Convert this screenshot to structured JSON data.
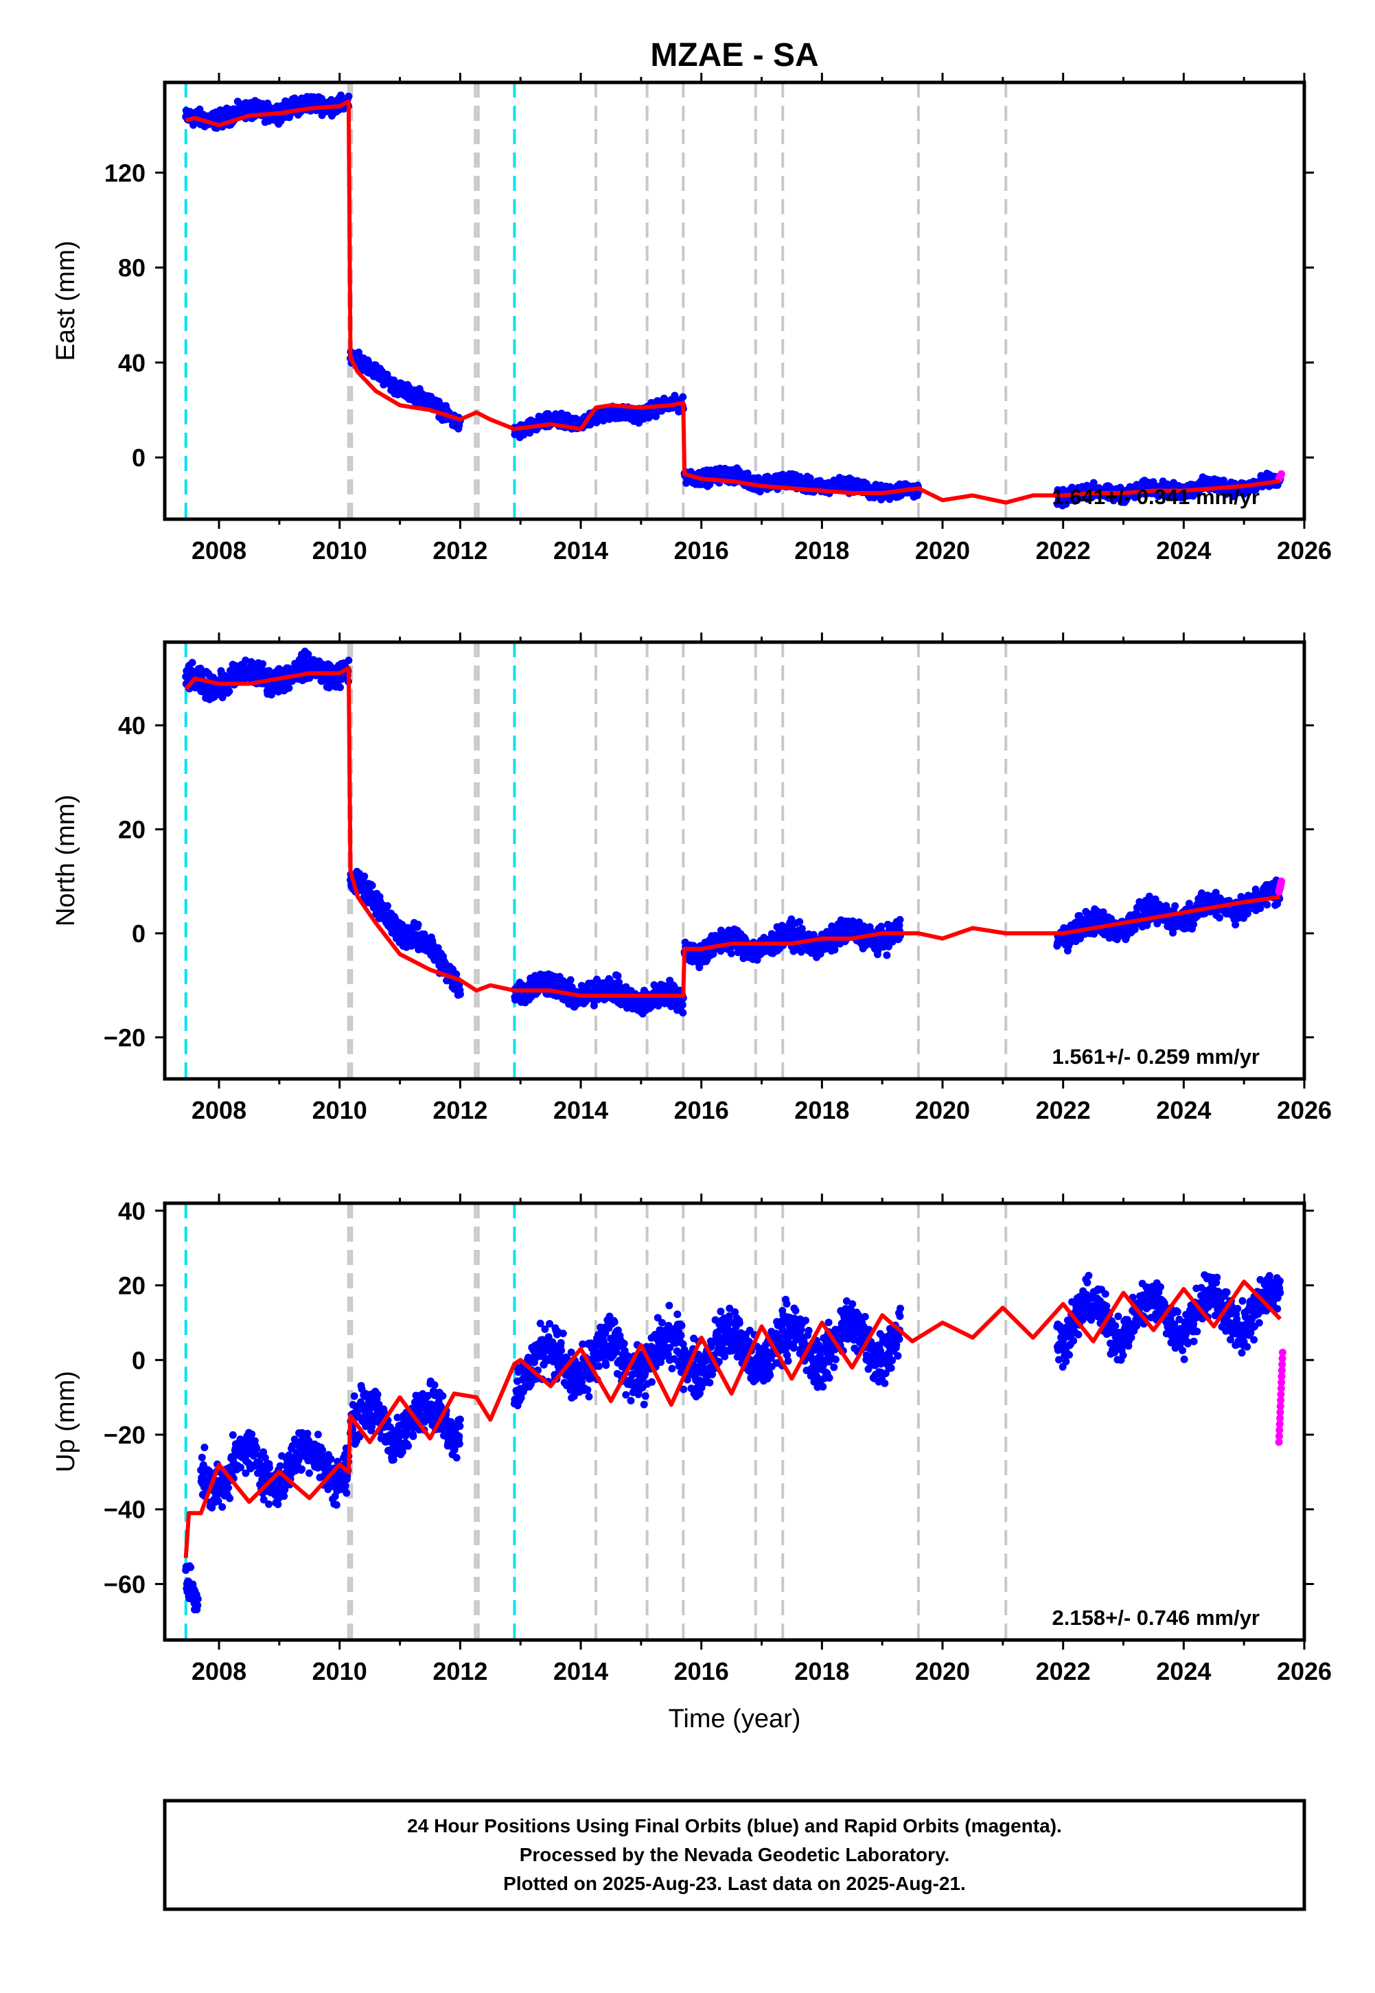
{
  "title": "MZAE - SA",
  "xlabel": "Time (year)",
  "footer": {
    "line1": "24 Hour Positions Using Final Orbits (blue) and Rapid Orbits (magenta).",
    "line2": "Processed by the Nevada Geodetic Laboratory.",
    "line3": "Plotted on 2025-Aug-23. Last data on 2025-Aug-21."
  },
  "colors": {
    "final_points": "#0000ff",
    "rapid_points": "#ff00ff",
    "model_line": "#ff0000",
    "event_equipment": "#c8c8c8",
    "event_earthquake": "#00e5ee",
    "frame": "#000000"
  },
  "chart_data": [
    {
      "type": "scatter",
      "component": "east",
      "ylabel": "East (mm)",
      "rate_label": "1.641+/- 0.341 mm/yr",
      "xlim": [
        2007.1,
        2026.0
      ],
      "ylim": [
        -26,
        158
      ],
      "xticks": [
        2008,
        2010,
        2012,
        2014,
        2016,
        2018,
        2020,
        2022,
        2024,
        2026
      ],
      "yticks": [
        0,
        40,
        80,
        120
      ],
      "event_lines": {
        "earthquake": [
          2007.45,
          2012.9
        ],
        "equipment": [
          2010.15,
          2010.2,
          2012.25,
          2012.3,
          2014.25,
          2015.1,
          2015.7,
          2016.9,
          2017.35,
          2019.6,
          2021.05
        ]
      },
      "model_series": {
        "name": "",
        "x": [
          2007.45,
          2007.6,
          2008.0,
          2008.5,
          2009.0,
          2009.5,
          2010.0,
          2010.15,
          2010.18,
          2010.3,
          2010.6,
          2011.0,
          2011.5,
          2012.0,
          2012.27,
          2012.5,
          2012.9,
          2013.5,
          2014.0,
          2014.25,
          2014.5,
          2015.0,
          2015.5,
          2015.7,
          2015.72,
          2016.0,
          2016.5,
          2017.0,
          2017.5,
          2018.0,
          2018.5,
          2019.0,
          2019.6,
          2020.0,
          2020.5,
          2021.05,
          2021.5,
          2022.0,
          2022.5,
          2023.0,
          2023.5,
          2024.0,
          2024.5,
          2025.0,
          2025.6
        ],
        "y": [
          142,
          143,
          140,
          144,
          145,
          147,
          148,
          150,
          42,
          36,
          28,
          22,
          20,
          16,
          19,
          16,
          12,
          14,
          12,
          21,
          22,
          21,
          22,
          23,
          -7,
          -9,
          -10,
          -12,
          -13,
          -14,
          -15,
          -15,
          -13,
          -18,
          -16,
          -19,
          -16,
          -16,
          -15,
          -15,
          -14,
          -14,
          -13,
          -12,
          -10
        ]
      },
      "final_series": {
        "name": "",
        "segments": [
          {
            "x": [
              2007.45,
              2010.15
            ],
            "base": [
              142,
              150
            ],
            "spread": 3
          },
          {
            "x": [
              2010.18,
              2012.0
            ],
            "base": [
              42,
              15
            ],
            "spread": 2.5
          },
          {
            "x": [
              2012.9,
              2015.7
            ],
            "base": [
              12,
              22
            ],
            "spread": 2.5
          },
          {
            "x": [
              2015.72,
              2019.6
            ],
            "base": [
              -7,
              -15
            ],
            "spread": 2.5
          },
          {
            "x": [
              2021.9,
              2025.6
            ],
            "base": [
              -16,
              -11
            ],
            "spread": 2.5
          }
        ]
      },
      "rapid_series": {
        "name": "",
        "x": [
          2025.58,
          2025.62
        ],
        "y": [
          -9,
          -7
        ]
      }
    },
    {
      "type": "scatter",
      "component": "north",
      "ylabel": "North (mm)",
      "rate_label": "1.561+/- 0.259 mm/yr",
      "xlim": [
        2007.1,
        2026.0
      ],
      "ylim": [
        -28,
        56
      ],
      "xticks": [
        2008,
        2010,
        2012,
        2014,
        2016,
        2018,
        2020,
        2022,
        2024,
        2026
      ],
      "yticks": [
        -20,
        0,
        20,
        40
      ],
      "event_lines": {
        "earthquake": [
          2007.45,
          2012.9
        ],
        "equipment": [
          2010.15,
          2010.2,
          2012.25,
          2012.3,
          2014.25,
          2015.1,
          2015.7,
          2016.9,
          2017.35,
          2019.6,
          2021.05
        ]
      },
      "model_series": {
        "name": "",
        "x": [
          2007.45,
          2007.6,
          2008.0,
          2008.5,
          2009.0,
          2009.5,
          2010.0,
          2010.15,
          2010.18,
          2010.3,
          2010.6,
          2011.0,
          2011.5,
          2012.0,
          2012.27,
          2012.5,
          2012.9,
          2013.5,
          2014.0,
          2014.5,
          2015.0,
          2015.5,
          2015.7,
          2015.72,
          2016.0,
          2016.5,
          2017.0,
          2017.5,
          2018.0,
          2018.5,
          2019.0,
          2019.6,
          2020.0,
          2020.5,
          2021.05,
          2021.5,
          2022.0,
          2022.5,
          2023.0,
          2023.5,
          2024.0,
          2024.5,
          2025.0,
          2025.6
        ],
        "y": [
          47,
          49,
          48,
          48,
          49,
          50,
          50,
          51,
          12,
          7,
          2,
          -4,
          -7,
          -9,
          -11,
          -10,
          -11,
          -11,
          -12,
          -12,
          -12,
          -12,
          -12,
          -3,
          -3,
          -2,
          -2,
          -2,
          -1,
          -1,
          0,
          0,
          -1,
          1,
          0,
          0,
          0,
          1,
          2,
          3,
          4,
          5,
          6,
          7
        ]
      },
      "final_series": {
        "name": "",
        "segments": [
          {
            "x": [
              2007.45,
              2010.15
            ],
            "base": [
              48,
              51
            ],
            "spread": 2
          },
          {
            "x": [
              2010.18,
              2012.0
            ],
            "base": [
              10,
              -9
            ],
            "spread": 2
          },
          {
            "x": [
              2012.9,
              2015.7
            ],
            "base": [
              -10,
              -13
            ],
            "spread": 2
          },
          {
            "x": [
              2015.72,
              2019.3
            ],
            "base": [
              -3,
              0
            ],
            "spread": 2
          },
          {
            "x": [
              2021.9,
              2025.6
            ],
            "base": [
              0,
              7
            ],
            "spread": 2
          }
        ]
      },
      "rapid_series": {
        "name": "",
        "x": [
          2025.58,
          2025.62
        ],
        "y": [
          8,
          10
        ]
      }
    },
    {
      "type": "scatter",
      "component": "up",
      "ylabel": "Up (mm)",
      "rate_label": "2.158+/- 0.746 mm/yr",
      "xlim": [
        2007.1,
        2026.0
      ],
      "ylim": [
        -75,
        42
      ],
      "xticks": [
        2008,
        2010,
        2012,
        2014,
        2016,
        2018,
        2020,
        2022,
        2024,
        2026
      ],
      "yticks": [
        -60,
        -40,
        -20,
        0,
        20,
        40
      ],
      "event_lines": {
        "earthquake": [
          2007.45,
          2012.9
        ],
        "equipment": [
          2010.15,
          2010.2,
          2012.25,
          2012.3,
          2014.25,
          2015.1,
          2015.7,
          2016.9,
          2017.35,
          2019.6,
          2021.05
        ]
      },
      "model_series": {
        "name": "",
        "x": [
          2007.45,
          2007.5,
          2007.7,
          2008.0,
          2008.5,
          2009.0,
          2009.5,
          2010.0,
          2010.15,
          2010.18,
          2010.5,
          2011.0,
          2011.5,
          2011.9,
          2012.27,
          2012.5,
          2012.9,
          2013.0,
          2013.5,
          2014.0,
          2014.5,
          2015.0,
          2015.5,
          2016.0,
          2016.5,
          2017.0,
          2017.5,
          2018.0,
          2018.5,
          2019.0,
          2019.5,
          2020.0,
          2020.5,
          2021.0,
          2021.5,
          2022.0,
          2022.5,
          2023.0,
          2023.5,
          2024.0,
          2024.5,
          2025.0,
          2025.6
        ],
        "y": [
          -53,
          -41,
          -41,
          -28,
          -38,
          -30,
          -37,
          -28,
          -30,
          -15,
          -22,
          -10,
          -21,
          -9,
          -10,
          -16,
          -1,
          0,
          -7,
          3,
          -11,
          4,
          -12,
          6,
          -9,
          9,
          -5,
          10,
          -2,
          12,
          5,
          10,
          6,
          14,
          6,
          15,
          5,
          18,
          8,
          19,
          9,
          21,
          11
        ]
      },
      "final_series": {
        "name": "",
        "segments": [
          {
            "x": [
              2007.45,
              2007.65
            ],
            "base": [
              -65,
              -65
            ],
            "spread": 5
          },
          {
            "x": [
              2007.7,
              2010.15
            ],
            "base": [
              -30,
              -27
            ],
            "spread": 5
          },
          {
            "x": [
              2010.18,
              2012.0
            ],
            "base": [
              -18,
              -15
            ],
            "spread": 5
          },
          {
            "x": [
              2012.9,
              2019.3
            ],
            "base": [
              -2,
              6
            ],
            "spread": 6
          },
          {
            "x": [
              2021.9,
              2025.6
            ],
            "base": [
              10,
              14
            ],
            "spread": 5
          }
        ]
      },
      "rapid_series": {
        "name": "",
        "x": [
          2025.58,
          2025.6,
          2025.62,
          2025.64
        ],
        "y": [
          -22,
          -14,
          -6,
          2
        ]
      }
    }
  ]
}
